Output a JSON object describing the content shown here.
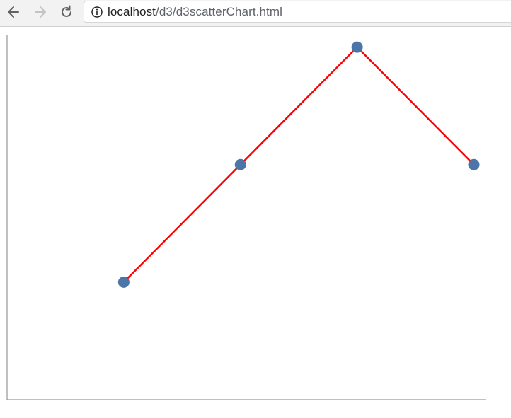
{
  "browser": {
    "url_host": "localhost",
    "url_path": "/d3/d3scatterChart.html",
    "back_icon": "arrow-left-icon",
    "forward_icon": "arrow-right-icon",
    "reload_icon": "reload-icon",
    "info_icon": "info-icon"
  },
  "chart_data": {
    "type": "line",
    "x": [
      1,
      2,
      3,
      4
    ],
    "y": [
      1,
      2,
      3,
      2
    ],
    "xlim": [
      0,
      4.1
    ],
    "ylim": [
      0,
      3.1
    ],
    "line_color": "#ff0000",
    "point_color": "#4c76a8",
    "axis_color": "#808080",
    "grid": false,
    "title": "",
    "xlabel": "",
    "ylabel": ""
  }
}
